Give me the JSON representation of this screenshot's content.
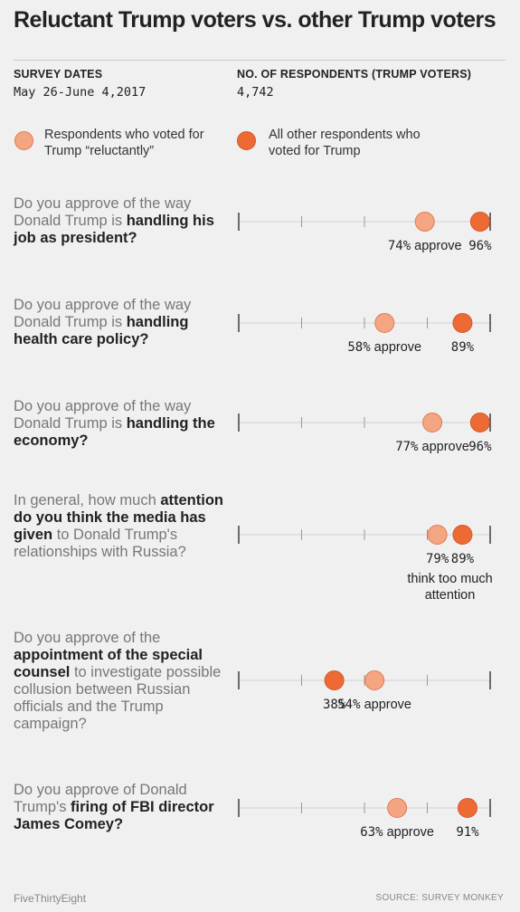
{
  "title": "Reluctant Trump voters vs. other Trump voters",
  "survey_dates_label": "SURVEY DATES",
  "survey_dates_value": "May 26-June 4,2017",
  "respondents_label": "NO. OF RESPONDENTS (TRUMP VOTERS)",
  "respondents_value": "4,742",
  "legend": {
    "reluctant": "Respondents who voted for Trump “reluctantly”",
    "other": "All other respondents who voted for Trump"
  },
  "colors": {
    "reluctant": "#f4a582",
    "other": "#ed6a35",
    "axis": "#333333",
    "gridline": "#d2d2d2"
  },
  "questions": [
    {
      "pre": "Do you approve of the way Donald Trump is ",
      "bold": "handling his job as president?",
      "post": ""
    },
    {
      "pre": "Do you approve of the way Donald Trump is ",
      "bold": "handling health care policy?",
      "post": ""
    },
    {
      "pre": "Do you approve of the way Donald Trump is ",
      "bold": "handling the economy?",
      "post": ""
    },
    {
      "pre": "In general, how much ",
      "bold": "attention do you think the media has given",
      "post": " to Donald Trump's relationships with Russia?"
    },
    {
      "pre": "Do you approve of the ",
      "bold": "appointment of the special counsel",
      "post": " to investigate possible collusion between Russian officials and the Trump campaign?"
    },
    {
      "pre": "Do you approve of Donald Trump's ",
      "bold": "firing of FBI director James Comey?",
      "post": ""
    }
  ],
  "footer": {
    "left": "FiveThirtyEight",
    "right": "SOURCE: SURVEY MONKEY"
  },
  "chart_data": {
    "type": "scatter",
    "xlim": [
      0,
      100
    ],
    "series": [
      {
        "name": "Respondents who voted for Trump “reluctantly”",
        "values": [
          74,
          58,
          77,
          79,
          54,
          63
        ]
      },
      {
        "name": "All other respondents who voted for Trump",
        "values": [
          96,
          89,
          96,
          89,
          38,
          91
        ]
      }
    ],
    "labels": [
      {
        "reluctant": "74% approve",
        "other": "96%",
        "extra": ""
      },
      {
        "reluctant": "58% approve",
        "other": "89%",
        "extra": ""
      },
      {
        "reluctant": "77% approve",
        "other": "96%",
        "extra": ""
      },
      {
        "reluctant": "79%",
        "other": "89%",
        "extra": "think too much attention"
      },
      {
        "reluctant": "54% approve",
        "other": "38%",
        "extra": ""
      },
      {
        "reluctant": "63% approve",
        "other": "91%",
        "extra": ""
      }
    ]
  }
}
